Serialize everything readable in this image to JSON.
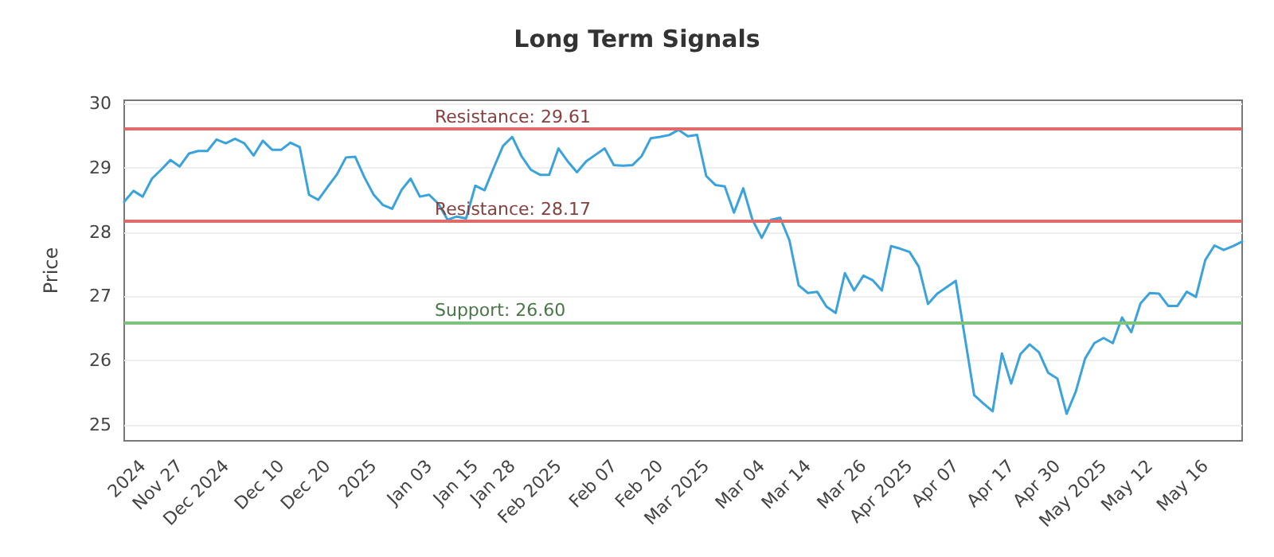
{
  "chart_data": {
    "type": "line",
    "title": "Long Term Signals",
    "ylabel": "Price",
    "categories": [
      null,
      null,
      "2024",
      null,
      null,
      null,
      "Nov 27",
      null,
      null,
      null,
      null,
      "Dec 2024",
      null,
      null,
      null,
      null,
      null,
      "Dec 10",
      null,
      null,
      null,
      null,
      "Dec 20",
      null,
      null,
      null,
      null,
      "2025",
      null,
      null,
      null,
      null,
      null,
      "Jan 03",
      null,
      null,
      null,
      null,
      "Jan 15",
      null,
      null,
      null,
      "Jan 28",
      null,
      null,
      null,
      null,
      "Feb 2025",
      null,
      null,
      null,
      null,
      null,
      "Feb 07",
      null,
      null,
      null,
      null,
      "Feb 20",
      null,
      null,
      null,
      null,
      "Mar 2025",
      null,
      null,
      null,
      null,
      null,
      "Mar 04",
      null,
      null,
      null,
      null,
      "Mar 14",
      null,
      null,
      null,
      null,
      null,
      "Mar 26",
      null,
      null,
      null,
      null,
      "Apr 2025",
      null,
      null,
      null,
      null,
      "Apr 07",
      null,
      null,
      null,
      null,
      null,
      "Apr 17",
      null,
      null,
      null,
      null,
      "Apr 30",
      null,
      null,
      null,
      null,
      "May 2025",
      null,
      null,
      null,
      null,
      "May 12",
      null,
      null,
      null,
      null,
      null,
      "May 16",
      null,
      null,
      null,
      null
    ],
    "series": [
      {
        "color": "#3ba3dc",
        "values": [
          28.47,
          28.64,
          28.55,
          28.83,
          28.97,
          29.12,
          29.02,
          29.22,
          29.26,
          29.26,
          29.44,
          29.38,
          29.45,
          29.38,
          29.19,
          29.42,
          29.28,
          29.28,
          29.39,
          29.32,
          28.58,
          28.5,
          28.7,
          28.89,
          29.16,
          29.17,
          28.85,
          28.58,
          28.42,
          28.36,
          28.65,
          28.83,
          28.55,
          28.58,
          28.44,
          28.19,
          28.24,
          28.21,
          28.72,
          28.65,
          29.0,
          29.34,
          29.48,
          29.18,
          28.97,
          28.89,
          28.89,
          29.3,
          29.1,
          28.93,
          29.1,
          29.2,
          29.3,
          29.04,
          29.03,
          29.04,
          29.18,
          29.46,
          29.48,
          29.51,
          29.59,
          29.49,
          29.51,
          28.87,
          28.73,
          28.71,
          28.3,
          28.68,
          28.19,
          27.91,
          28.19,
          28.22,
          27.87,
          27.17,
          27.05,
          27.07,
          26.84,
          26.74,
          27.36,
          27.09,
          27.32,
          27.25,
          27.09,
          27.78,
          27.74,
          27.69,
          27.46,
          26.88,
          27.04,
          27.14,
          27.24,
          26.35,
          25.46,
          25.33,
          25.21,
          26.11,
          25.64,
          26.1,
          26.25,
          26.13,
          25.81,
          25.72,
          25.17,
          25.52,
          26.03,
          26.27,
          26.35,
          26.27,
          26.67,
          26.44,
          26.89,
          27.05,
          27.04,
          26.85,
          26.85,
          27.07,
          26.99,
          27.56,
          27.79,
          27.72,
          27.78,
          27.85
        ]
      }
    ],
    "ylim": [
      24.75,
      30.05
    ],
    "yticks": [
      25,
      26,
      27,
      28,
      29,
      30
    ],
    "grid": "y",
    "marker": "none",
    "line_style": "solid",
    "ref_lines": [
      {
        "axis": "y",
        "value": 29.61,
        "label": "Resistance: 29.61",
        "color": "#e06b6b"
      },
      {
        "axis": "y",
        "value": 28.17,
        "label": "Resistance: 28.17",
        "color": "#e06b6b"
      },
      {
        "axis": "y",
        "value": 26.6,
        "label": "Support: 26.60",
        "color": "#7cc47c"
      }
    ]
  }
}
